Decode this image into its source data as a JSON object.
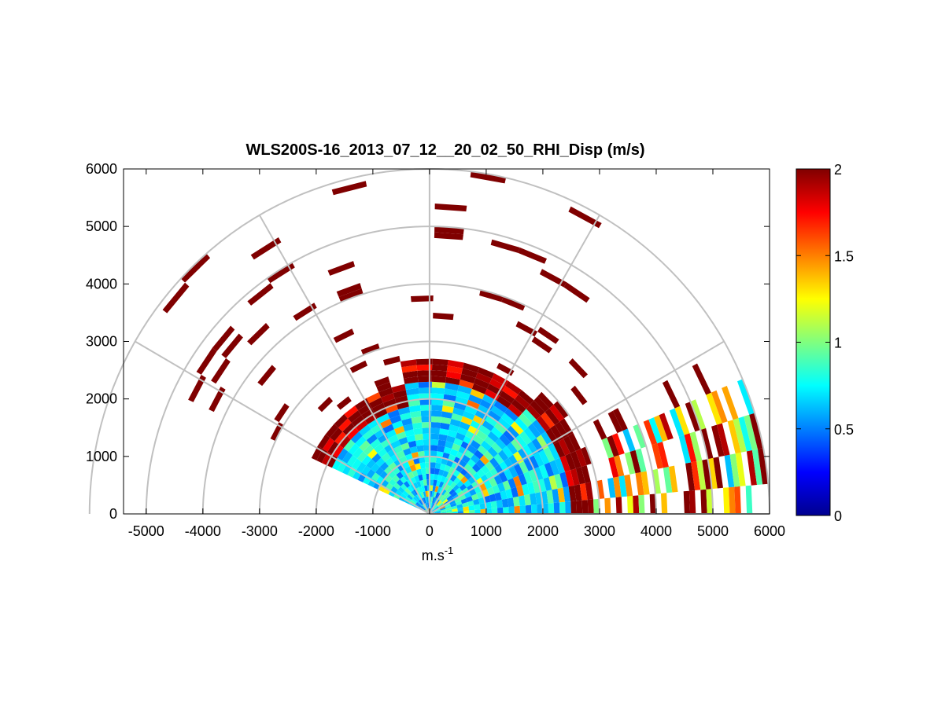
{
  "chart_data": {
    "type": "heatmap",
    "projection": "polar-rhi-sector",
    "title": "WLS200S-16_2013_07_12__20_02_50_RHI_Disp (m/s)",
    "xlabel": "m.s",
    "xlabel_superscript": "-1",
    "ylabel": "",
    "xlim": [
      -5400,
      6000
    ],
    "ylim": [
      0,
      6000
    ],
    "xticks": [
      "-5000",
      "-4000",
      "-3000",
      "-2000",
      "-1000",
      "0",
      "1000",
      "2000",
      "3000",
      "4000",
      "5000",
      "6000"
    ],
    "yticks": [
      "0",
      "1000",
      "2000",
      "3000",
      "4000",
      "5000",
      "6000"
    ],
    "polar_grid": {
      "ring_ranges": [
        1000,
        2000,
        3000,
        4000,
        5000,
        6000
      ],
      "spoke_angles_deg": [
        0,
        30,
        60,
        90,
        120,
        150
      ],
      "grid": true
    },
    "scan": {
      "elevation_start_deg": 2,
      "elevation_end_deg": 152,
      "elevation_step_deg": 6,
      "range_gate_m": 100,
      "max_range_m": 6000
    },
    "colorbar": {
      "colormap": "jet",
      "clim": [
        0,
        2
      ],
      "ticks": [
        "0",
        "0.5",
        "1",
        "1.5",
        "2"
      ],
      "placement": "right"
    },
    "typical_values": {
      "inner_core_0_to_2000m": 0.7,
      "edge_near_3000m": 2.0,
      "sparse_returns_above_3000m": 2.0
    }
  }
}
